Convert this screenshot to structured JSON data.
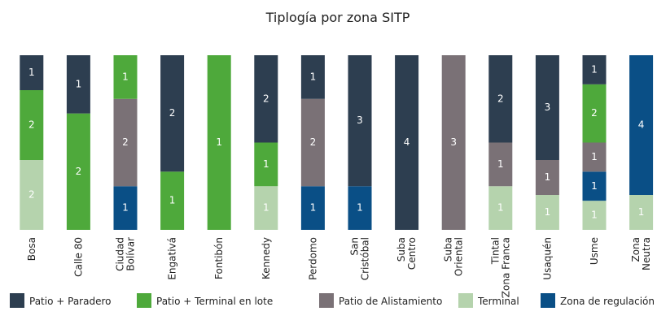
{
  "chart_data": {
    "type": "stacked_bar_percent",
    "title": "Tiplogía por zona SITP",
    "categories": [
      "Bosa",
      "Calle 80",
      "Ciudad\nBolívar",
      "Engativá",
      "Fontibón",
      "Kennedy",
      "Perdomo",
      "San\nCristóbal",
      "Suba\nCentro",
      "Suba\nOriental",
      "Tintal\nZona Franca",
      "Usaquén",
      "Usme",
      "Zona\nNeutra"
    ],
    "series": [
      {
        "name": "Patio + Paradero",
        "color": "#2d3e50",
        "values": [
          1,
          1,
          null,
          2,
          null,
          2,
          1,
          3,
          4,
          null,
          2,
          3,
          1,
          null
        ]
      },
      {
        "name": "Patio + Terminal en lote",
        "color": "#4ea93b",
        "values": [
          2,
          2,
          1,
          1,
          1,
          1,
          null,
          null,
          null,
          null,
          null,
          null,
          2,
          null
        ]
      },
      {
        "name": "Patio de Alistamiento",
        "color": "#7a7176",
        "values": [
          null,
          null,
          2,
          null,
          null,
          null,
          2,
          null,
          null,
          3,
          1,
          1,
          1,
          null
        ]
      },
      {
        "name": "Terminal",
        "color": "#b5d3ad",
        "values": [
          2,
          null,
          null,
          null,
          null,
          1,
          null,
          null,
          null,
          null,
          1,
          1,
          1,
          1
        ]
      },
      {
        "name": "Zona de regulación",
        "color": "#0a4f86",
        "values": [
          null,
          null,
          1,
          null,
          null,
          null,
          1,
          1,
          null,
          null,
          null,
          null,
          1,
          4
        ]
      }
    ],
    "legend": "bottom"
  }
}
